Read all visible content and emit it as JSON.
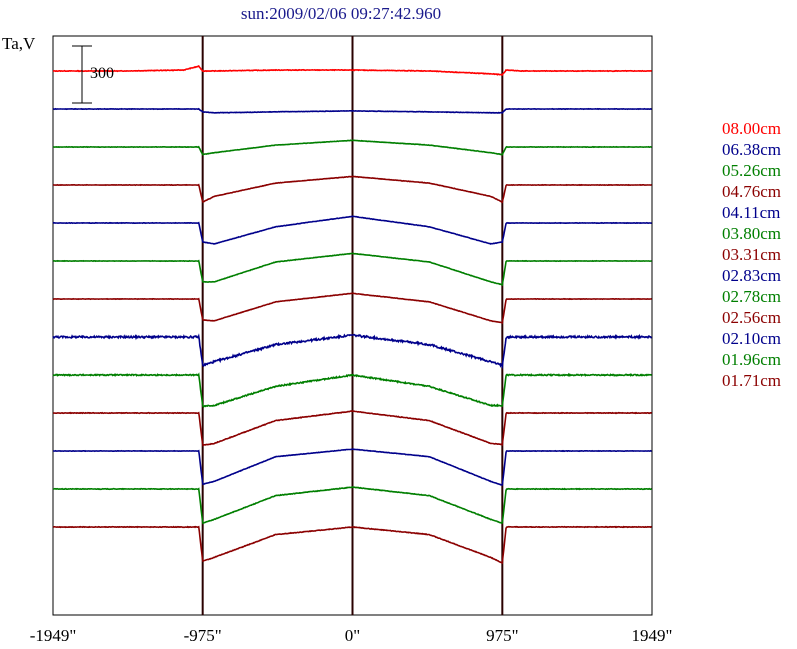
{
  "chart_data": {
    "type": "line",
    "title": "sun:2009/02/06 09:27:42.960",
    "ylabel": "Ta,V",
    "xlabel": "",
    "x_ticks": [
      {
        "value": -1949,
        "label": "-1949\""
      },
      {
        "value": -975,
        "label": "-975\""
      },
      {
        "value": 0,
        "label": "0\""
      },
      {
        "value": 975,
        "label": "975\""
      },
      {
        "value": 1949,
        "label": "1949\""
      }
    ],
    "xlim": [
      -1949,
      1949
    ],
    "vertical_markers": [
      -975,
      0,
      975
    ],
    "scale_bar": {
      "value": 300,
      "label": "300"
    },
    "grid": false,
    "legend_position": "right",
    "series": [
      {
        "name": "08.00cm",
        "color": "#ff0000",
        "offset": 0,
        "x": [
          -1949,
          -1500,
          -1100,
          -1000,
          -975,
          -900,
          -500,
          0,
          500,
          900,
          975,
          1000,
          1100,
          1500,
          1949
        ],
        "values": [
          0,
          0,
          5,
          25,
          0,
          0,
          5,
          5,
          0,
          -15,
          -20,
          5,
          0,
          0,
          0
        ]
      },
      {
        "name": "06.38cm",
        "color": "#00008b",
        "offset": -1000,
        "x": [
          -1949,
          -1500,
          -1000,
          -975,
          -900,
          -500,
          0,
          500,
          900,
          975,
          1000,
          1500,
          1949
        ],
        "values": [
          0,
          0,
          0,
          -15,
          -20,
          -15,
          -10,
          -15,
          -20,
          -20,
          0,
          0,
          0
        ]
      },
      {
        "name": "05.26cm",
        "color": "#007f00",
        "offset": -2000,
        "x": [
          -1949,
          -1500,
          -1000,
          -975,
          -900,
          -500,
          0,
          500,
          900,
          975,
          1000,
          1500,
          1949
        ],
        "values": [
          0,
          0,
          0,
          -40,
          -30,
          10,
          35,
          10,
          -30,
          -40,
          0,
          0,
          0
        ]
      },
      {
        "name": "04.76cm",
        "color": "#8b0000",
        "offset": -3000,
        "x": [
          -1949,
          -1500,
          -1000,
          -975,
          -900,
          -500,
          0,
          500,
          900,
          975,
          1000,
          1500,
          1949
        ],
        "values": [
          0,
          0,
          0,
          -90,
          -60,
          10,
          45,
          10,
          -60,
          -90,
          0,
          0,
          0
        ]
      },
      {
        "name": "04.11cm",
        "color": "#00008b",
        "offset": -4000,
        "x": [
          -1949,
          -1500,
          -1000,
          -975,
          -900,
          -500,
          0,
          500,
          900,
          975,
          1000,
          1500,
          1949
        ],
        "values": [
          0,
          0,
          0,
          -100,
          -110,
          -20,
          35,
          -20,
          -110,
          -100,
          0,
          0,
          0
        ]
      },
      {
        "name": "03.80cm",
        "color": "#007f00",
        "offset": -5000,
        "x": [
          -1949,
          -1500,
          -1000,
          -975,
          -900,
          -500,
          0,
          500,
          900,
          975,
          1000,
          1500,
          1949
        ],
        "values": [
          0,
          0,
          0,
          -110,
          -110,
          -5,
          40,
          -5,
          -110,
          -125,
          0,
          0,
          0
        ]
      },
      {
        "name": "03.31cm",
        "color": "#8b0000",
        "offset": -6000,
        "x": [
          -1949,
          -1500,
          -1000,
          -975,
          -900,
          -500,
          0,
          500,
          900,
          975,
          1000,
          1500,
          1949
        ],
        "values": [
          0,
          0,
          0,
          -110,
          -115,
          -15,
          30,
          -15,
          -115,
          -125,
          0,
          0,
          0
        ]
      },
      {
        "name": "02.83cm",
        "color": "#00008b",
        "offset": -7000,
        "x": [
          -1949,
          -1500,
          -1000,
          -975,
          -900,
          -500,
          0,
          500,
          900,
          975,
          1000,
          1500,
          1949
        ],
        "values": [
          0,
          0,
          0,
          -150,
          -130,
          -40,
          10,
          -40,
          -130,
          -150,
          0,
          0,
          0
        ]
      },
      {
        "name": "02.78cm",
        "color": "#007f00",
        "offset": -8000,
        "x": [
          -1949,
          -1500,
          -1000,
          -975,
          -900,
          -500,
          0,
          500,
          900,
          975,
          1000,
          1500,
          1949
        ],
        "values": [
          0,
          0,
          0,
          -165,
          -160,
          -60,
          0,
          -60,
          -160,
          -160,
          0,
          0,
          0
        ]
      },
      {
        "name": "02.56cm",
        "color": "#8b0000",
        "offset": -9000,
        "x": [
          -1949,
          -1500,
          -1000,
          -975,
          -900,
          -500,
          0,
          500,
          900,
          975,
          1000,
          1500,
          1949
        ],
        "values": [
          0,
          0,
          0,
          -170,
          -160,
          -40,
          10,
          -40,
          -160,
          -165,
          0,
          0,
          0
        ]
      },
      {
        "name": "02.10cm",
        "color": "#00008b",
        "offset": -10000,
        "x": [
          -1949,
          -1500,
          -1000,
          -975,
          -900,
          -500,
          0,
          500,
          900,
          975,
          1000,
          1500,
          1949
        ],
        "values": [
          0,
          0,
          0,
          -175,
          -160,
          -30,
          10,
          -30,
          -160,
          -180,
          0,
          0,
          0
        ]
      },
      {
        "name": "01.96cm",
        "color": "#007f00",
        "offset": -11000,
        "x": [
          -1949,
          -1500,
          -1000,
          -975,
          -900,
          -500,
          0,
          500,
          900,
          975,
          1000,
          1500,
          1949
        ],
        "values": [
          0,
          0,
          0,
          -180,
          -160,
          -35,
          10,
          -35,
          -160,
          -180,
          0,
          0,
          0
        ]
      },
      {
        "name": "01.71cm",
        "color": "#8b0000",
        "offset": -12000,
        "x": [
          -1949,
          -1500,
          -1000,
          -975,
          -900,
          -500,
          0,
          500,
          900,
          975,
          1000,
          1500,
          1949
        ],
        "values": [
          0,
          0,
          0,
          -180,
          -160,
          -40,
          0,
          -40,
          -160,
          -190,
          0,
          0,
          0
        ]
      }
    ]
  }
}
